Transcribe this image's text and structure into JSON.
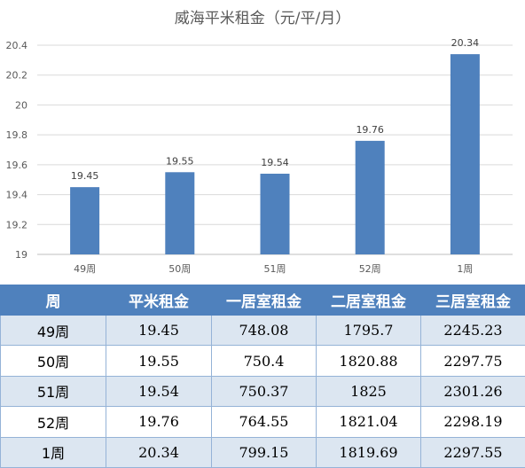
{
  "chart_data": {
    "type": "bar",
    "title": "威海平米租金（元/平/月）",
    "categories": [
      "49周",
      "50周",
      "51周",
      "52周",
      "1周"
    ],
    "values": [
      19.45,
      19.55,
      19.54,
      19.76,
      20.34
    ],
    "data_labels": [
      "19.45",
      "19.55",
      "19.54",
      "19.76",
      "20.34"
    ],
    "xlabel": "",
    "ylabel": "",
    "ylim": [
      19,
      20.4
    ],
    "yticks": [
      "19",
      "19.2",
      "19.4",
      "19.6",
      "19.8",
      "20",
      "20.2",
      "20.4"
    ],
    "grid": true,
    "legend": "none",
    "bar_color": "#4f81bd"
  },
  "table": {
    "headers": [
      "周",
      "平米租金",
      "一居室租金",
      "二居室租金",
      "三居室租金"
    ],
    "rows": [
      [
        "49周",
        "19.45",
        "748.08",
        "1795.7",
        "2245.23"
      ],
      [
        "50周",
        "19.55",
        "750.4",
        "1820.88",
        "2297.75"
      ],
      [
        "51周",
        "19.54",
        "750.37",
        "1825",
        "2301.26"
      ],
      [
        "52周",
        "19.76",
        "764.55",
        "1821.04",
        "2298.19"
      ],
      [
        "1周",
        "20.34",
        "799.15",
        "1819.69",
        "2297.55"
      ]
    ]
  }
}
